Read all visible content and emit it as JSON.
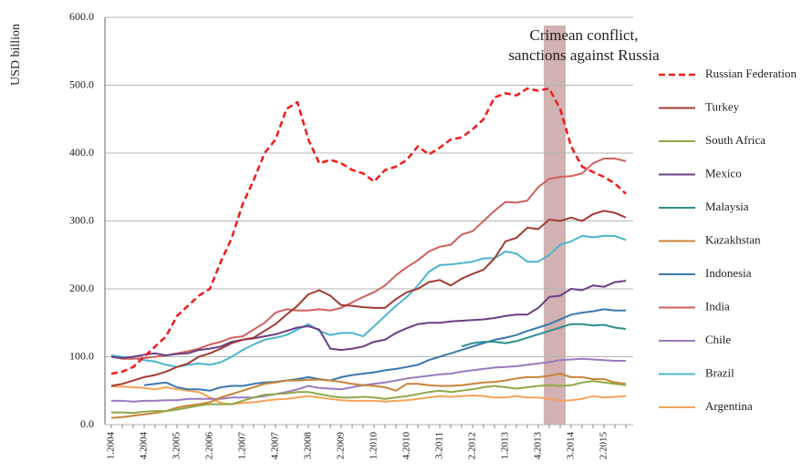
{
  "chart_data": {
    "type": "line",
    "y_label": "USD billion",
    "annotation": {
      "lines": [
        "Crimean conflict,",
        "sanctions against Russia"
      ],
      "span": [
        40,
        41
      ],
      "color": "#c9a3a3"
    },
    "grid": true,
    "legend": "right",
    "ylim": [
      0,
      600
    ],
    "yticks": [
      {
        "value": 0,
        "label": "0.0"
      },
      {
        "value": 100,
        "label": "100.0"
      },
      {
        "value": 200,
        "label": "200.0"
      },
      {
        "value": 300,
        "label": "300.0"
      },
      {
        "value": 400,
        "label": "400.0"
      },
      {
        "value": 500,
        "label": "500.0"
      },
      {
        "value": 600,
        "label": "600.0"
      }
    ],
    "categories": [
      "1.2004",
      null,
      null,
      "4.2004",
      null,
      null,
      "3.2005",
      null,
      null,
      "2.2006",
      null,
      null,
      "1.2007",
      null,
      null,
      "4.2007",
      null,
      null,
      "3.2008",
      null,
      null,
      "2.2009",
      null,
      null,
      "1.2010",
      null,
      null,
      "4.2010",
      null,
      null,
      "3.2011",
      null,
      null,
      "2.2012",
      null,
      null,
      "1.2013",
      null,
      null,
      "4.2013",
      null,
      null,
      "3.2014",
      null,
      null,
      "2.2015",
      null,
      null
    ],
    "series": [
      {
        "name": "Russian Federation",
        "color": "#ee1c1c",
        "dashed": true,
        "values": [
          75,
          78,
          85,
          100,
          115,
          130,
          160,
          175,
          190,
          200,
          240,
          275,
          325,
          360,
          400,
          420,
          465,
          475,
          420,
          385,
          390,
          385,
          375,
          370,
          358,
          375,
          380,
          390,
          410,
          398,
          408,
          420,
          423,
          435,
          450,
          482,
          488,
          485,
          495,
          492,
          495,
          465,
          410,
          380,
          372,
          365,
          355,
          340
        ]
      },
      {
        "name": "Turkey",
        "color": "#a23b32",
        "values": [
          57,
          60,
          65,
          70,
          73,
          78,
          85,
          90,
          100,
          105,
          112,
          120,
          125,
          128,
          138,
          148,
          162,
          175,
          192,
          198,
          190,
          176,
          175,
          173,
          172,
          172,
          185,
          195,
          200,
          210,
          213,
          205,
          215,
          222,
          228,
          245,
          270,
          275,
          290,
          288,
          302,
          300,
          305,
          300,
          310,
          315,
          312,
          305
        ]
      },
      {
        "name": "South Africa",
        "color": "#8fa948",
        "values": [
          18,
          18,
          17,
          19,
          20,
          20,
          22,
          25,
          28,
          30,
          30,
          30,
          35,
          40,
          44,
          45,
          46,
          48,
          48,
          45,
          42,
          40,
          40,
          41,
          40,
          38,
          40,
          42,
          45,
          48,
          50,
          48,
          50,
          52,
          55,
          57,
          55,
          53,
          55,
          57,
          58,
          57,
          58,
          62,
          64,
          62,
          60,
          58
        ]
      },
      {
        "name": "Mexico",
        "color": "#6a3f86",
        "values": [
          100,
          98,
          100,
          103,
          105,
          102,
          104,
          105,
          110,
          112,
          115,
          122,
          125,
          127,
          130,
          133,
          138,
          143,
          145,
          140,
          112,
          110,
          112,
          115,
          122,
          125,
          135,
          142,
          148,
          150,
          150,
          152,
          153,
          154,
          155,
          157,
          160,
          162,
          162,
          172,
          188,
          190,
          200,
          198,
          205,
          203,
          210,
          212
        ]
      },
      {
        "name": "Malaysia",
        "color": "#2c8f8c",
        "values": [
          null,
          null,
          null,
          null,
          null,
          null,
          null,
          null,
          null,
          null,
          null,
          null,
          null,
          null,
          null,
          null,
          null,
          null,
          null,
          null,
          null,
          null,
          null,
          null,
          null,
          null,
          null,
          null,
          null,
          null,
          null,
          null,
          115,
          120,
          122,
          122,
          120,
          123,
          128,
          133,
          138,
          143,
          148,
          148,
          146,
          147,
          143,
          141
        ]
      },
      {
        "name": "Kazakhstan",
        "color": "#c8843a",
        "values": [
          10,
          11,
          13,
          15,
          17,
          20,
          25,
          28,
          30,
          33,
          40,
          45,
          50,
          55,
          60,
          62,
          65,
          65,
          66,
          66,
          65,
          63,
          60,
          58,
          57,
          55,
          50,
          60,
          60,
          58,
          57,
          57,
          58,
          60,
          62,
          63,
          65,
          68,
          70,
          70,
          72,
          75,
          70,
          70,
          67,
          67,
          62,
          60
        ]
      },
      {
        "name": "Indonesia",
        "color": "#3a78b0",
        "values": [
          null,
          null,
          null,
          58,
          60,
          62,
          55,
          52,
          52,
          50,
          55,
          57,
          57,
          60,
          62,
          63,
          65,
          67,
          70,
          67,
          65,
          70,
          73,
          75,
          77,
          80,
          82,
          85,
          88,
          95,
          100,
          105,
          110,
          115,
          120,
          125,
          128,
          132,
          138,
          143,
          148,
          155,
          162,
          165,
          167,
          170,
          168,
          168
        ]
      },
      {
        "name": "India",
        "color": "#d0605a",
        "values": [
          100,
          97,
          97,
          98,
          100,
          102,
          105,
          108,
          112,
          118,
          122,
          128,
          130,
          140,
          150,
          165,
          170,
          168,
          168,
          170,
          168,
          172,
          180,
          188,
          195,
          205,
          220,
          232,
          242,
          255,
          262,
          265,
          280,
          285,
          300,
          315,
          328,
          327,
          330,
          350,
          362,
          365,
          366,
          370,
          385,
          392,
          392,
          388
        ]
      },
      {
        "name": "Chile",
        "color": "#9a7bc0",
        "values": [
          35,
          35,
          34,
          35,
          35,
          36,
          36,
          38,
          38,
          38,
          38,
          40,
          40,
          40,
          42,
          45,
          48,
          52,
          57,
          54,
          53,
          52,
          55,
          58,
          60,
          62,
          65,
          68,
          70,
          72,
          74,
          75,
          78,
          80,
          82,
          84,
          85,
          86,
          88,
          90,
          92,
          95,
          96,
          97,
          96,
          95,
          94,
          94
        ]
      },
      {
        "name": "Brazil",
        "color": "#4cb5cf",
        "values": [
          102,
          100,
          98,
          95,
          93,
          88,
          85,
          88,
          90,
          88,
          92,
          100,
          110,
          118,
          125,
          128,
          132,
          140,
          148,
          138,
          132,
          135,
          135,
          130,
          145,
          160,
          175,
          188,
          205,
          225,
          235,
          236,
          238,
          240,
          245,
          245,
          255,
          252,
          240,
          240,
          250,
          265,
          270,
          278,
          276,
          278,
          278,
          272
        ]
      },
      {
        "name": "Argentina",
        "color": "#f5a45a",
        "values": [
          56,
          56,
          55,
          54,
          52,
          55,
          52,
          50,
          48,
          40,
          32,
          30,
          32,
          33,
          35,
          37,
          38,
          40,
          42,
          40,
          38,
          36,
          35,
          35,
          35,
          34,
          35,
          36,
          38,
          40,
          42,
          41,
          42,
          43,
          42,
          40,
          40,
          42,
          40,
          40,
          38,
          35,
          36,
          38,
          42,
          40,
          41,
          42
        ]
      }
    ]
  }
}
